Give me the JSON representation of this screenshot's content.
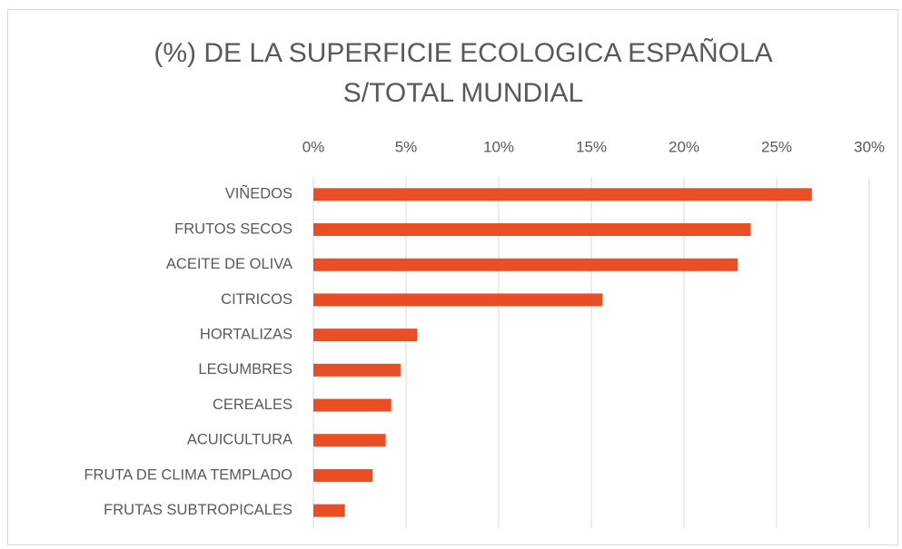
{
  "chart_data": {
    "type": "barh",
    "title": [
      "(%) DE LA SUPERFICIE ECOLOGICA ESPAÑOLA",
      "S/TOTAL MUNDIAL"
    ],
    "categories": [
      "VIÑEDOS",
      "FRUTOS SECOS",
      "ACEITE DE OLIVA",
      "CITRICOS",
      "HORTALIZAS",
      "LEGUMBRES",
      "CEREALES",
      "ACUICULTURA",
      "FRUTA DE CLIMA TEMPLADO",
      "FRUTAS SUBTROPICALES"
    ],
    "values": [
      26.9,
      23.6,
      22.9,
      15.6,
      5.6,
      4.7,
      4.2,
      3.9,
      3.2,
      1.7
    ],
    "color": "#e94e24",
    "xlim": [
      0,
      30
    ],
    "xticks": [
      {
        "value": 0,
        "label": "0%"
      },
      {
        "value": 5,
        "label": "5%"
      },
      {
        "value": 10,
        "label": "10%"
      },
      {
        "value": 15,
        "label": "15%"
      },
      {
        "value": 20,
        "label": "20%"
      },
      {
        "value": 25,
        "label": "25%"
      },
      {
        "value": 30,
        "label": "30%"
      }
    ],
    "grid": true
  }
}
